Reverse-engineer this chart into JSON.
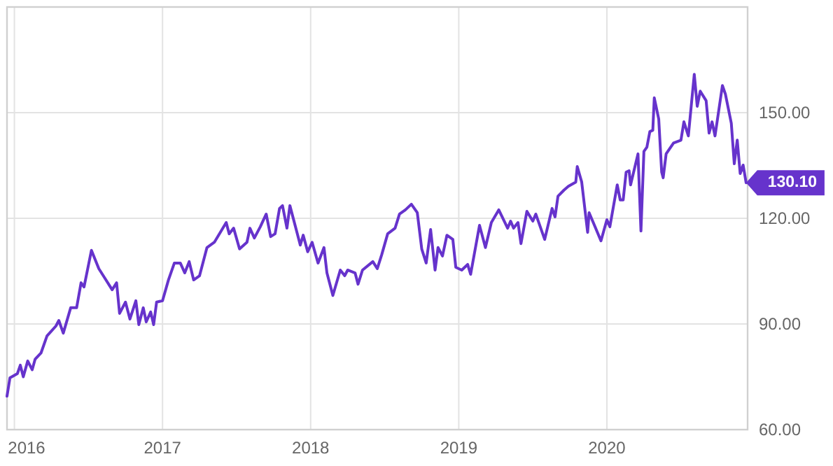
{
  "chart_data": {
    "type": "line",
    "xlim": [
      2015.95,
      2020.95
    ],
    "xticks": [
      2016,
      2017,
      2018,
      2019,
      2020
    ],
    "ylim": [
      60,
      180
    ],
    "yticks": [
      {
        "value": 60,
        "label": "60.00"
      },
      {
        "value": 90,
        "label": "90.00"
      },
      {
        "value": 120,
        "label": "120.00"
      },
      {
        "value": 150,
        "label": "150.00"
      }
    ],
    "grid": true,
    "marker": "none",
    "line_style": "solid",
    "series": [
      {
        "color": "#6633cc",
        "x": [
          2015.95,
          2015.97,
          2016.02,
          2016.04,
          2016.06,
          2016.09,
          2016.12,
          2016.14,
          2016.18,
          2016.22,
          2016.28,
          2016.3,
          2016.33,
          2016.38,
          2016.42,
          2016.45,
          2016.47,
          2016.52,
          2016.57,
          2016.6,
          2016.66,
          2016.69,
          2016.71,
          2016.75,
          2016.78,
          2016.82,
          2016.84,
          2016.87,
          2016.89,
          2016.92,
          2016.94,
          2016.96,
          2017.0,
          2017.04,
          2017.08,
          2017.12,
          2017.15,
          2017.18,
          2017.21,
          2017.25,
          2017.3,
          2017.35,
          2017.43,
          2017.45,
          2017.48,
          2017.52,
          2017.57,
          2017.59,
          2017.62,
          2017.66,
          2017.7,
          2017.73,
          2017.76,
          2017.79,
          2017.81,
          2017.84,
          2017.86,
          2017.9,
          2017.93,
          2017.95,
          2017.98,
          2018.01,
          2018.05,
          2018.09,
          2018.11,
          2018.15,
          2018.2,
          2018.23,
          2018.25,
          2018.3,
          2018.32,
          2018.35,
          2018.42,
          2018.45,
          2018.48,
          2018.52,
          2018.57,
          2018.6,
          2018.64,
          2018.68,
          2018.72,
          2018.75,
          2018.78,
          2018.81,
          2018.84,
          2018.86,
          2018.89,
          2018.92,
          2018.96,
          2018.98,
          2019.02,
          2019.06,
          2019.08,
          2019.14,
          2019.18,
          2019.22,
          2019.27,
          2019.33,
          2019.35,
          2019.37,
          2019.4,
          2019.42,
          2019.46,
          2019.5,
          2019.52,
          2019.58,
          2019.63,
          2019.65,
          2019.67,
          2019.71,
          2019.74,
          2019.79,
          2019.8,
          2019.83,
          2019.87,
          2019.88,
          2019.92,
          2019.96,
          2020.0,
          2020.02,
          2020.07,
          2020.09,
          2020.11,
          2020.13,
          2020.15,
          2020.16,
          2020.21,
          2020.23,
          2020.25,
          2020.27,
          2020.29,
          2020.31,
          2020.32,
          2020.35,
          2020.37,
          2020.38,
          2020.4,
          2020.45,
          2020.5,
          2020.52,
          2020.55,
          2020.59,
          2020.61,
          2020.63,
          2020.67,
          2020.69,
          2020.71,
          2020.73,
          2020.78,
          2020.8,
          2020.84,
          2020.86,
          2020.88,
          2020.9,
          2020.92,
          2020.94
        ],
        "values": [
          69.5,
          74.7,
          75.9,
          78.3,
          75,
          79.5,
          77,
          80,
          81.8,
          86.6,
          89.4,
          91,
          87.4,
          94.6,
          94.6,
          101.7,
          100.5,
          110.9,
          105.7,
          103.7,
          99.7,
          101.7,
          93,
          96.2,
          91.4,
          96.6,
          89.8,
          94.6,
          90.6,
          93.4,
          89.8,
          96.2,
          96.6,
          102.5,
          107.3,
          107.3,
          104.5,
          107.7,
          102.5,
          103.7,
          111.7,
          113.2,
          118.8,
          115.6,
          117.2,
          111.3,
          113.2,
          117.2,
          114.4,
          117.6,
          121.2,
          114.8,
          115.6,
          122.8,
          123.6,
          117.2,
          123.6,
          117.2,
          112.4,
          115.2,
          110.5,
          113.2,
          107.3,
          111.7,
          104.5,
          98.1,
          105.3,
          103.7,
          105.3,
          104.5,
          101.3,
          105.3,
          107.7,
          105.7,
          109.7,
          115.6,
          117.2,
          121.2,
          122.4,
          124,
          121.6,
          111.3,
          107.3,
          116.8,
          105.3,
          111.7,
          109.3,
          115.2,
          114,
          106.1,
          105.3,
          106.9,
          104.1,
          118,
          111.7,
          118.8,
          122.4,
          117.2,
          119.2,
          117.2,
          118.8,
          112.8,
          122,
          119.2,
          121.2,
          114,
          122.8,
          120.4,
          126.3,
          128,
          129.1,
          130.3,
          134.7,
          130.3,
          116,
          121.6,
          117.6,
          113.6,
          119.6,
          117.6,
          129.5,
          125.2,
          125.2,
          133.1,
          133.5,
          129.5,
          138.3,
          116.4,
          139,
          140.2,
          144.6,
          145,
          154.2,
          148.2,
          133.1,
          131.5,
          138.3,
          141.4,
          142.2,
          147.4,
          143.4,
          160.9,
          151.8,
          156.1,
          153.4,
          144.2,
          147.4,
          143.4,
          157.7,
          155.3,
          147,
          135.5,
          142.2,
          132.7,
          135.1,
          130.1
        ]
      }
    ],
    "annotations": [
      {
        "text": "130.10",
        "x": 2020.94,
        "y": 130.1
      }
    ]
  }
}
